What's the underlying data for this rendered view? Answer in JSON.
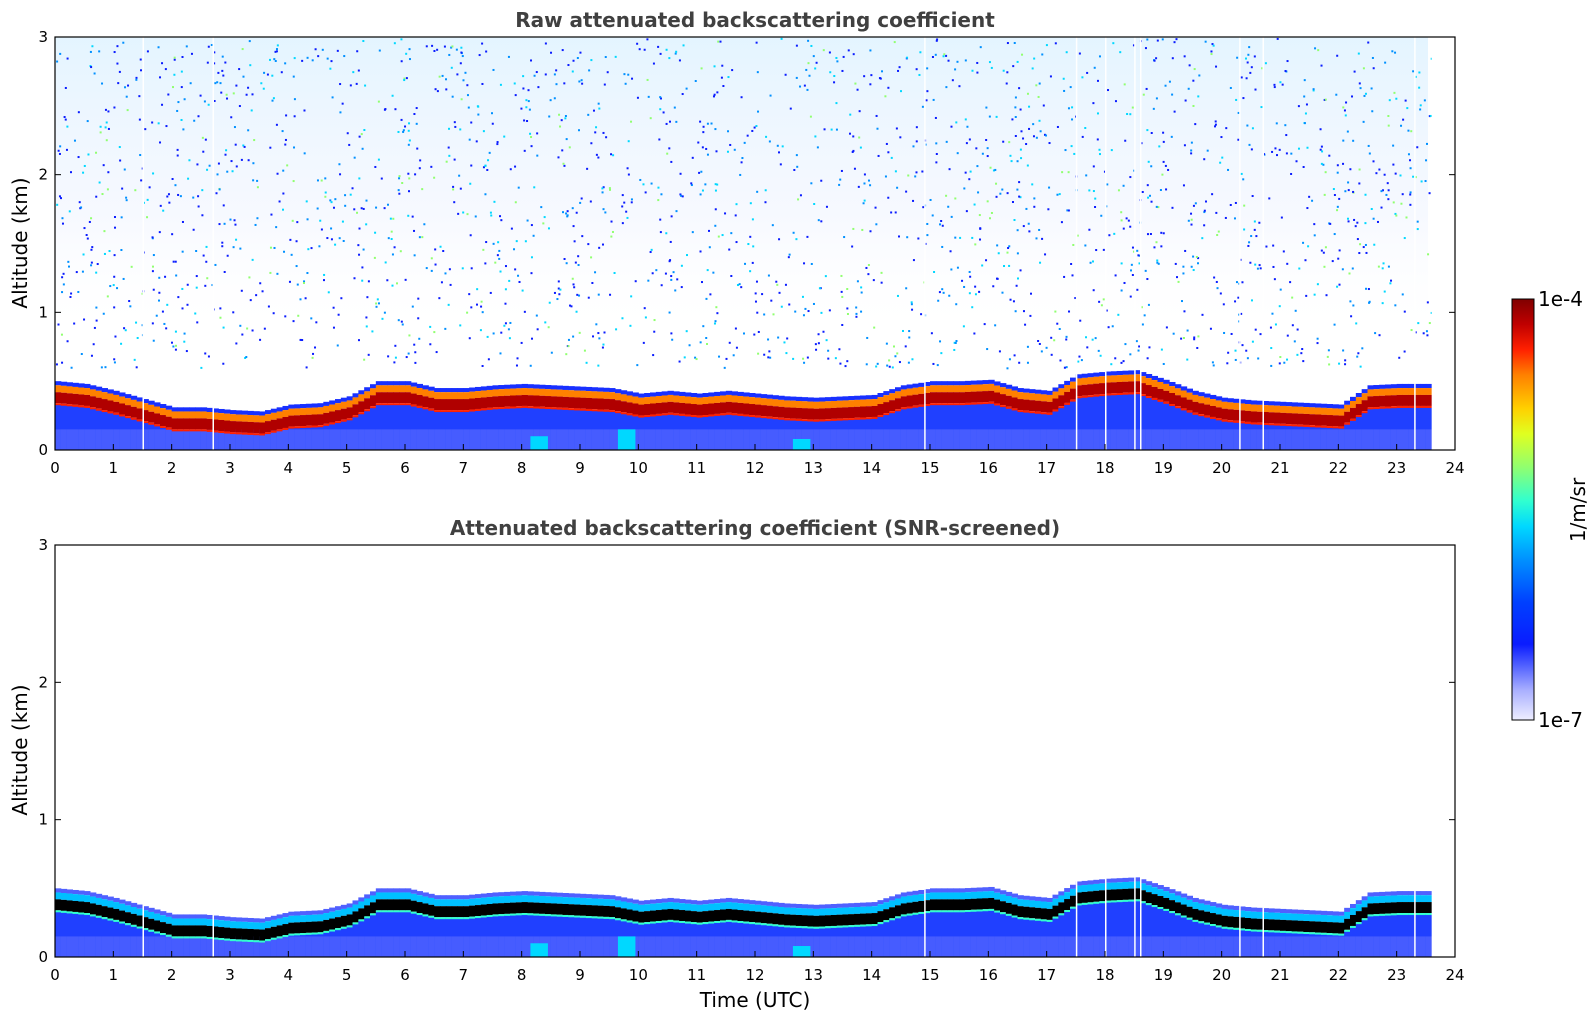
{
  "chart_data": [
    {
      "type": "heatmap",
      "title": "Raw attenuated backscattering coefficient",
      "xlabel": "",
      "ylabel": "Altitude (km)",
      "xlim": [
        0,
        24
      ],
      "ylim": [
        0,
        3
      ],
      "x_ticks": [
        "0",
        "1",
        "2",
        "3",
        "4",
        "5",
        "6",
        "7",
        "8",
        "9",
        "10",
        "11",
        "12",
        "13",
        "14",
        "15",
        "16",
        "17",
        "18",
        "19",
        "20",
        "21",
        "22",
        "23",
        "24"
      ],
      "y_ticks": [
        "0",
        "1",
        "2",
        "3"
      ],
      "data_end_hour": 23.6,
      "layer_top_km": [
        [
          0,
          0.47
        ],
        [
          0.5,
          0.45
        ],
        [
          1,
          0.4
        ],
        [
          1.5,
          0.34
        ],
        [
          2,
          0.28
        ],
        [
          2.5,
          0.28
        ],
        [
          3,
          0.26
        ],
        [
          3.5,
          0.25
        ],
        [
          4,
          0.3
        ],
        [
          4.5,
          0.31
        ],
        [
          5,
          0.36
        ],
        [
          5.5,
          0.47
        ],
        [
          6,
          0.47
        ],
        [
          6.5,
          0.42
        ],
        [
          7,
          0.42
        ],
        [
          7.5,
          0.44
        ],
        [
          8,
          0.45
        ],
        [
          8.5,
          0.44
        ],
        [
          9,
          0.43
        ],
        [
          9.5,
          0.42
        ],
        [
          10,
          0.38
        ],
        [
          10.5,
          0.4
        ],
        [
          11,
          0.38
        ],
        [
          11.5,
          0.4
        ],
        [
          12,
          0.38
        ],
        [
          12.5,
          0.36
        ],
        [
          13,
          0.35
        ],
        [
          13.5,
          0.36
        ],
        [
          14,
          0.37
        ],
        [
          14.5,
          0.44
        ],
        [
          15,
          0.47
        ],
        [
          15.5,
          0.47
        ],
        [
          16,
          0.48
        ],
        [
          16.5,
          0.42
        ],
        [
          17,
          0.4
        ],
        [
          17.5,
          0.52
        ],
        [
          18,
          0.54
        ],
        [
          18.5,
          0.55
        ],
        [
          19,
          0.48
        ],
        [
          19.5,
          0.4
        ],
        [
          20,
          0.35
        ],
        [
          20.5,
          0.33
        ],
        [
          21,
          0.32
        ],
        [
          21.5,
          0.31
        ],
        [
          22,
          0.3
        ],
        [
          22.5,
          0.44
        ],
        [
          23,
          0.45
        ],
        [
          23.6,
          0.45
        ]
      ],
      "colorbar": {
        "min_label": "1e-7",
        "max_label": "1e-4",
        "label": "1/m/sr",
        "scale": "log"
      }
    },
    {
      "type": "heatmap",
      "title": "Attenuated backscattering coefficient (SNR-screened)",
      "xlabel": "Time (UTC)",
      "ylabel": "Altitude (km)",
      "xlim": [
        0,
        24
      ],
      "ylim": [
        0,
        3
      ],
      "x_ticks": [
        "0",
        "1",
        "2",
        "3",
        "4",
        "5",
        "6",
        "7",
        "8",
        "9",
        "10",
        "11",
        "12",
        "13",
        "14",
        "15",
        "16",
        "17",
        "18",
        "19",
        "20",
        "21",
        "22",
        "23",
        "24"
      ],
      "y_ticks": [
        "0",
        "1",
        "2",
        "3"
      ],
      "data_end_hour": 23.6
    }
  ],
  "colors": {
    "colormap": [
      "#eeeeff",
      "#aab0ff",
      "#5060ff",
      "#0a1cff",
      "#0040ff",
      "#0090ff",
      "#00d8ff",
      "#30ffd0",
      "#90ff70",
      "#e0ff20",
      "#ffd000",
      "#ff8000",
      "#ff2000",
      "#c00000",
      "#800000"
    ],
    "saturated": "#000000"
  }
}
